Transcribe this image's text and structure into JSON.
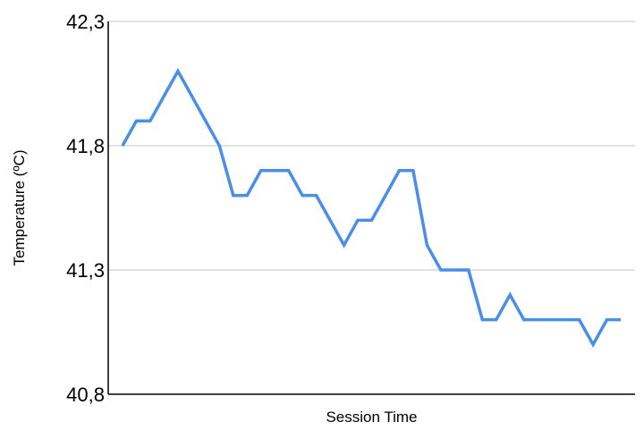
{
  "chart_data": {
    "type": "line",
    "title": "",
    "xlabel": "Session Time",
    "ylabel": "Temperature (ºC)",
    "ylim": [
      40.8,
      42.3
    ],
    "yticks": [
      40.8,
      41.3,
      41.8,
      42.3
    ],
    "ytick_labels": [
      "40,8",
      "41,3",
      "41,8",
      "42,3"
    ],
    "grid": true,
    "legend": "none",
    "colors": {
      "series": "#4a8ee6",
      "grid": "#d9d9d9",
      "axis": "#000000"
    },
    "x": [
      1,
      2,
      3,
      4,
      5,
      6,
      7,
      8,
      9,
      10,
      11,
      12,
      13,
      14,
      15,
      16,
      17,
      18,
      19,
      20,
      21,
      22,
      23,
      24,
      25,
      26,
      27,
      28,
      29,
      30,
      31,
      32,
      33,
      34,
      35,
      36,
      37
    ],
    "series": [
      {
        "values": [
          41.8,
          41.9,
          41.9,
          42.0,
          42.1,
          42.0,
          41.9,
          41.8,
          41.6,
          41.6,
          41.7,
          41.7,
          41.7,
          41.6,
          41.6,
          41.5,
          41.4,
          41.5,
          41.5,
          41.6,
          41.7,
          41.7,
          41.4,
          41.3,
          41.3,
          41.3,
          41.1,
          41.1,
          41.2,
          41.1,
          41.1,
          41.1,
          41.1,
          41.1,
          41.0,
          41.1,
          41.1
        ]
      }
    ]
  }
}
